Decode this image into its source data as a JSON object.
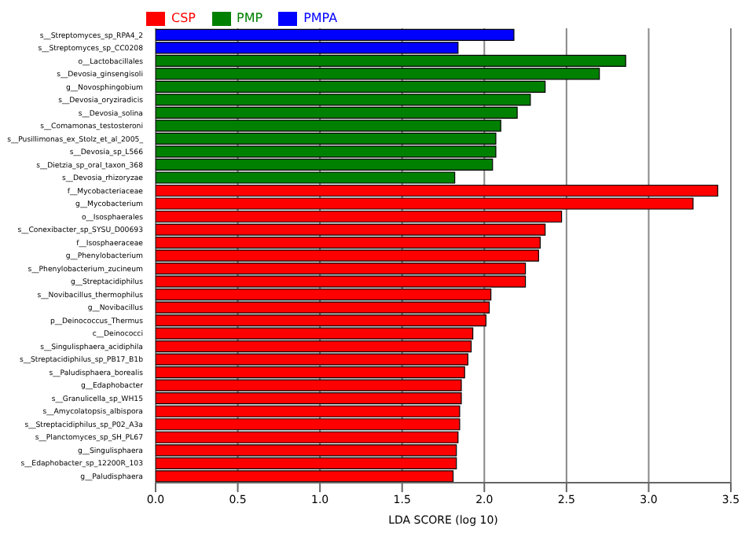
{
  "chart_data": {
    "type": "bar",
    "orientation": "horizontal",
    "stacked": true,
    "xlabel": "LDA SCORE (log 10)",
    "categories": [
      "s__Streptomyces_sp_RPA4_2",
      "s__Streptomyces_sp_CC0208",
      "o__Lactobacillales",
      "s__Devosia_ginsengisoli",
      "g__Novosphingobium",
      "s__Devosia_oryziradicis",
      "s__Devosia_solina",
      "s__Comamonas_testosteroni",
      "s__Pusillimonas_ex_Stolz_et_al_2005_",
      "s__Devosia_sp_L566",
      "s__Dietzia_sp_oral_taxon_368",
      "s__Devosia_rhizoryzae",
      "f__Mycobacteriaceae",
      "g__Mycobacterium",
      "o__Isosphaerales",
      "s__Conexibacter_sp_SYSU_D00693",
      "f__Isosphaeraceae",
      "g__Phenylobacterium",
      "s__Phenylobacterium_zucineum",
      "g__Streptacidiphilus",
      "s__Novibacillus_thermophilus",
      "g__Novibacillus",
      "p__Deinococcus_Thermus",
      "c__Deinococci",
      "s__Singulisphaera_acidiphila",
      "s__Streptacidiphilus_sp_PB17_B1b",
      "s__Paludisphaera_borealis",
      "g__Edaphobacter",
      "s__Granulicella_sp_WH15",
      "s__Amycolatopsis_albispora",
      "s__Streptacidiphilus_sp_P02_A3a",
      "s__Planctomyces_sp_SH_PL67",
      "g__Singulisphaera",
      "s__Edaphobacter_sp_12200R_103",
      "g__Paludisphaera"
    ],
    "series": [
      {
        "name": "CSP",
        "color": "#ff0000",
        "values": [
          null,
          null,
          null,
          null,
          null,
          null,
          null,
          null,
          null,
          null,
          null,
          null,
          3.42,
          3.27,
          2.47,
          2.37,
          2.34,
          2.33,
          2.25,
          2.25,
          2.04,
          2.03,
          2.01,
          1.93,
          1.92,
          1.9,
          1.88,
          1.86,
          1.86,
          1.85,
          1.85,
          1.84,
          1.83,
          1.83,
          1.81
        ]
      },
      {
        "name": "PMP",
        "color": "#008000",
        "values": [
          null,
          null,
          2.86,
          2.7,
          2.37,
          2.28,
          2.2,
          2.1,
          2.07,
          2.07,
          2.05,
          1.82,
          null,
          null,
          null,
          null,
          null,
          null,
          null,
          null,
          null,
          null,
          null,
          null,
          null,
          null,
          null,
          null,
          null,
          null,
          null,
          null,
          null,
          null,
          null
        ]
      },
      {
        "name": "PMPA",
        "color": "#0000ff",
        "values": [
          2.18,
          1.84,
          null,
          null,
          null,
          null,
          null,
          null,
          null,
          null,
          null,
          null,
          null,
          null,
          null,
          null,
          null,
          null,
          null,
          null,
          null,
          null,
          null,
          null,
          null,
          null,
          null,
          null,
          null,
          null,
          null,
          null,
          null,
          null,
          null
        ]
      }
    ],
    "xlim": [
      0,
      3.5
    ],
    "xticks": [
      {
        "value": 0,
        "label": "0.0"
      },
      {
        "value": 0.5,
        "label": "0.5"
      },
      {
        "value": 1,
        "label": "1.0"
      },
      {
        "value": 1.5,
        "label": "1.5"
      },
      {
        "value": 2,
        "label": "2.0"
      },
      {
        "value": 2.5,
        "label": "2.5"
      },
      {
        "value": 3,
        "label": "3.0"
      },
      {
        "value": 3.5,
        "label": "3.5"
      }
    ],
    "grid": "x",
    "legend": "top left"
  }
}
